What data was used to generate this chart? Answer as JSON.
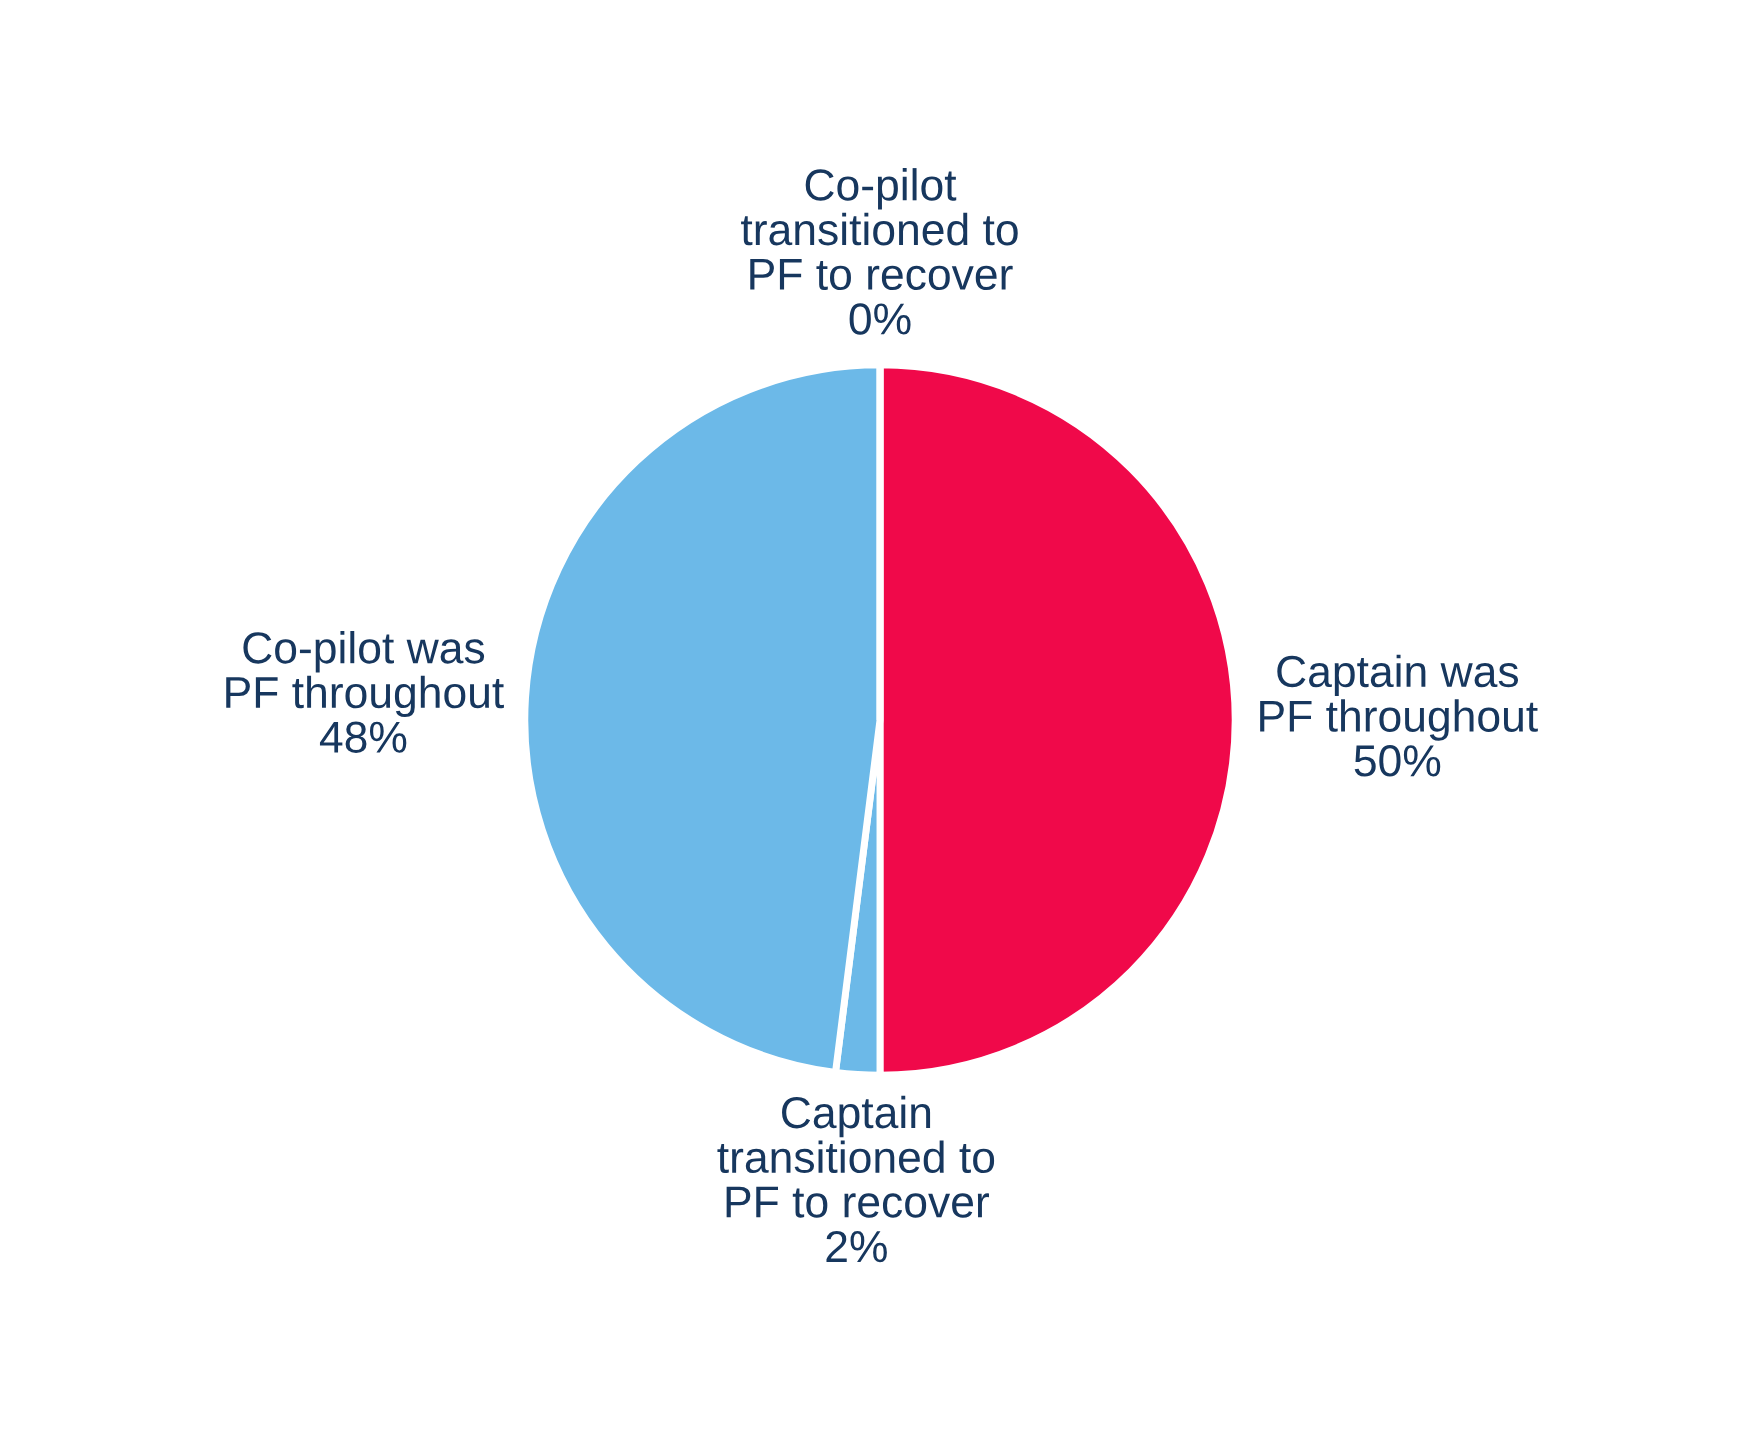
{
  "chart_data": {
    "type": "pie",
    "categories": [
      "Captain was\nPF throughout",
      "Captain\ntransitioned to\nPF to recover",
      "Co-pilot was\nPF throughout",
      "Co-pilot\ntransitioned to\nPF to recover"
    ],
    "values": [
      50,
      2,
      48,
      0
    ],
    "value_labels": [
      "50%",
      "2%",
      "48%",
      "0%"
    ],
    "colors": [
      "#f0094a",
      "#6cb9e8",
      "#6cb9e8",
      "#6cb9e8"
    ],
    "legend": false
  }
}
